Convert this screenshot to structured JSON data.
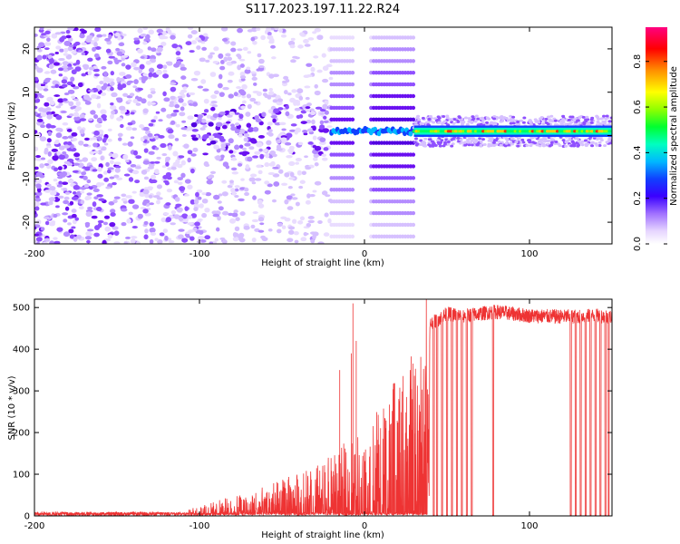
{
  "title": "S117.2023.197.11.22.R24",
  "chart_data": [
    {
      "type": "heatmap",
      "xlabel": "Height of straight line (km)",
      "ylabel": "Frequency (Hz)",
      "xlim": [
        -200,
        150
      ],
      "ylim": [
        -25,
        25
      ],
      "xticks": [
        -200,
        -100,
        0,
        100
      ],
      "yticks": [
        -20,
        -10,
        0,
        10,
        20
      ],
      "colorbar": {
        "label": "Normalized spectral amplitude",
        "range": [
          0.0,
          0.95
        ],
        "ticks": [
          0.0,
          0.2,
          0.4,
          0.6,
          0.8
        ],
        "colormap": [
          "#ffffff",
          "#e6d5ff",
          "#a070ff",
          "#5a00e8",
          "#2040ff",
          "#00c8ff",
          "#00ff80",
          "#90ff00",
          "#ffff00",
          "#ff9000",
          "#ff0000",
          "#ff0080"
        ]
      },
      "features": {
        "carrier_frequency_hz": 1.0,
        "carrier_start_km": 30,
        "carrier_amplitude": 0.55,
        "sideband_spacing_hz": 2.7,
        "sideband_region_km": [
          -20,
          30
        ],
        "noise_region_km": [
          -200,
          -20
        ]
      },
      "grid": false
    },
    {
      "type": "line",
      "xlabel": "Height of straight line (km)",
      "ylabel": "SNR (10 * v/v)",
      "xlim": [
        -200,
        150
      ],
      "ylim": [
        0,
        520
      ],
      "xticks": [
        -200,
        -100,
        0,
        100
      ],
      "yticks": [
        0,
        100,
        200,
        300,
        400,
        500
      ],
      "series": [
        {
          "color": "#ee3333",
          "x": [
            -200,
            -150,
            -110,
            -100,
            -80,
            -60,
            -40,
            -20,
            0,
            10,
            20,
            30,
            36,
            40,
            50,
            60,
            70,
            80,
            100,
            120,
            140,
            150
          ],
          "y": [
            7,
            6,
            7,
            15,
            30,
            45,
            65,
            90,
            140,
            170,
            210,
            250,
            280,
            460,
            485,
            480,
            485,
            490,
            480,
            478,
            480,
            478
          ]
        }
      ],
      "dropouts_km": [
        42,
        44,
        47,
        50,
        53,
        56,
        59,
        62,
        65,
        78,
        125,
        128,
        131,
        134,
        137,
        140,
        143,
        146,
        148
      ],
      "grid": false
    }
  ]
}
